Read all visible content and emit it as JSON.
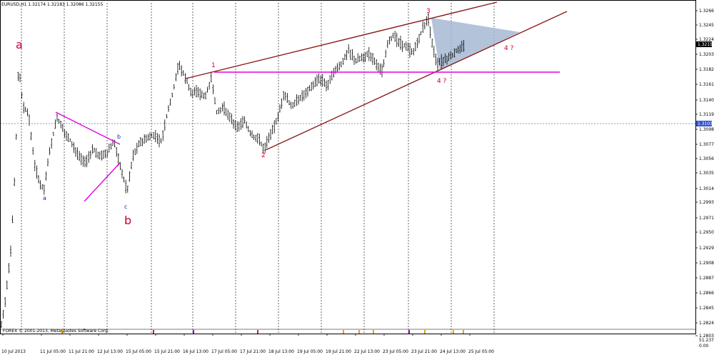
{
  "window": {
    "header": "EURUSD,H1  1.32174 1.32183 1.32086 1.32155",
    "copyright": "FOREX © 2001-2013, MetaQuotes Software Corp."
  },
  "chart_data": {
    "type": "candlestick",
    "symbol": "EURUSD",
    "timeframe": "H1",
    "ylim": [
      1.28,
      1.328
    ],
    "y_ticks": [
      "1.32660",
      "1.32450",
      "1.32240",
      "1.32030",
      "1.31820",
      "1.31610",
      "1.31400",
      "1.31190",
      "1.30980",
      "1.30770",
      "1.30560",
      "1.30350",
      "1.30140",
      "1.29930",
      "1.29715",
      "1.29505",
      "1.29295",
      "1.29085",
      "1.28875",
      "1.28665",
      "1.28450",
      "1.28240",
      "1.28035"
    ],
    "x_ticks": [
      "10 Jul 2013",
      "11 Jul 05:00",
      "11 Jul 21:00",
      "12 Jul 13:00",
      "15 Jul 05:00",
      "15 Jul 21:00",
      "16 Jul 13:00",
      "17 Jul 05:00",
      "17 Jul 21:00",
      "18 Jul 13:00",
      "19 Jul 05:00",
      "19 Jul 21:00",
      "22 Jul 13:00",
      "23 Jul 05:00",
      "23 Jul 21:00",
      "24 Jul 13:00",
      "25 Jul 05:00"
    ],
    "current_price": "1.32155",
    "hline_price": "1.31033",
    "sub_labels": [
      "51.2376",
      "0.00"
    ],
    "wave_labels": {
      "a_major": "a",
      "b_major": "b",
      "a_minor": "a",
      "b_minor": "b",
      "c_minor": "c",
      "w1": "1",
      "w2": "2",
      "w3": "3",
      "w4_lower": "4 ?",
      "w4_right": "4 ?"
    },
    "colors": {
      "up": "#000000",
      "grid": "#000000",
      "channel": "#8b1a1a",
      "magenta": "#e000e0",
      "triangle": "#a5b8d4",
      "hline": "#5577bb",
      "wave_red": "#cc0033",
      "wave_blue": "#1a1aa6",
      "price_box": "#ffffff"
    }
  }
}
